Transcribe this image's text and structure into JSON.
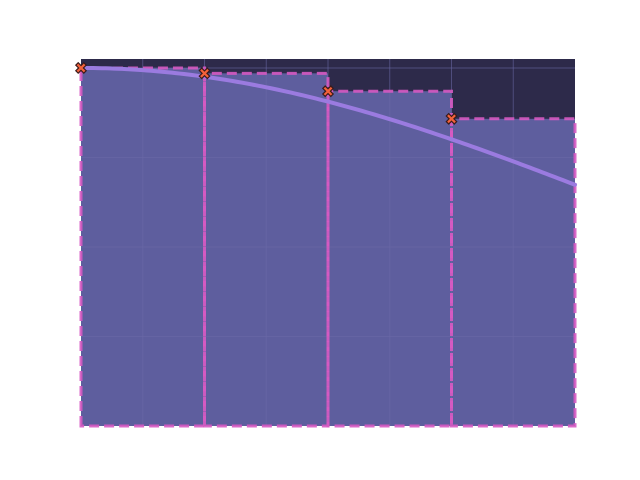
{
  "chart_data": {
    "type": "bar",
    "title": "",
    "xlabel": "",
    "ylabel": "",
    "xlim": [
      0,
      4
    ],
    "ylim": [
      0,
      1.025
    ],
    "grid": true,
    "bars": [
      {
        "x0": 0,
        "x1": 1,
        "value": 1.0
      },
      {
        "x0": 1,
        "x1": 2,
        "value": 0.985
      },
      {
        "x0": 2,
        "x1": 3,
        "value": 0.935
      },
      {
        "x0": 3,
        "x1": 4,
        "value": 0.858
      }
    ],
    "markers": [
      {
        "x": 0,
        "y": 1.0
      },
      {
        "x": 1,
        "y": 0.985
      },
      {
        "x": 2,
        "y": 0.935
      },
      {
        "x": 3,
        "y": 0.858
      }
    ],
    "curve": {
      "type": "gaussian",
      "sigma": 4.5
    },
    "gridlines_x": [
      0.5,
      1,
      1.5,
      2,
      2.5,
      3,
      3.5
    ],
    "gridlines_y": [
      0.25,
      0.5,
      0.75,
      1.0
    ],
    "colors": {
      "axes_background": "#2d2a4a",
      "bar_fill": "#5e5e9e",
      "bar_edge": "#d65ac2",
      "curve": "#9b7be0",
      "marker_fill": "#f4623a",
      "marker_edge": "#3a1a1a",
      "grid": "#6c6aa8"
    }
  }
}
